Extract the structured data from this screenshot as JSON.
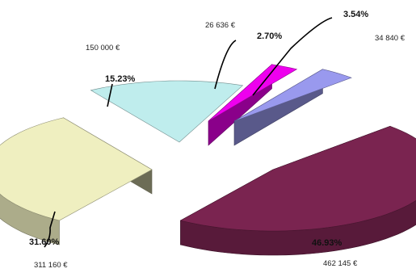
{
  "chart_data": {
    "type": "pie",
    "style": "3d-exploded",
    "grid": false,
    "legend": "none",
    "slices": [
      {
        "value": 462145,
        "value_label": "462 145 €",
        "percent": 46.93,
        "percent_label": "46.93%",
        "color": "#7a2450"
      },
      {
        "value": 311160,
        "value_label": "311 160 €",
        "percent": 31.6,
        "percent_label": "31.60%",
        "color": "#efefc0"
      },
      {
        "value": 150000,
        "value_label": "150 000 €",
        "percent": 15.23,
        "percent_label": "15.23%",
        "color": "#bfeded"
      },
      {
        "value": 26636,
        "value_label": "26 636 €",
        "percent": 2.7,
        "percent_label": "2.70%",
        "color": "#ee00ee"
      },
      {
        "value": 34840,
        "value_label": "34 840 €",
        "percent": 3.54,
        "percent_label": "3.54%",
        "color": "#9999ee"
      }
    ]
  }
}
